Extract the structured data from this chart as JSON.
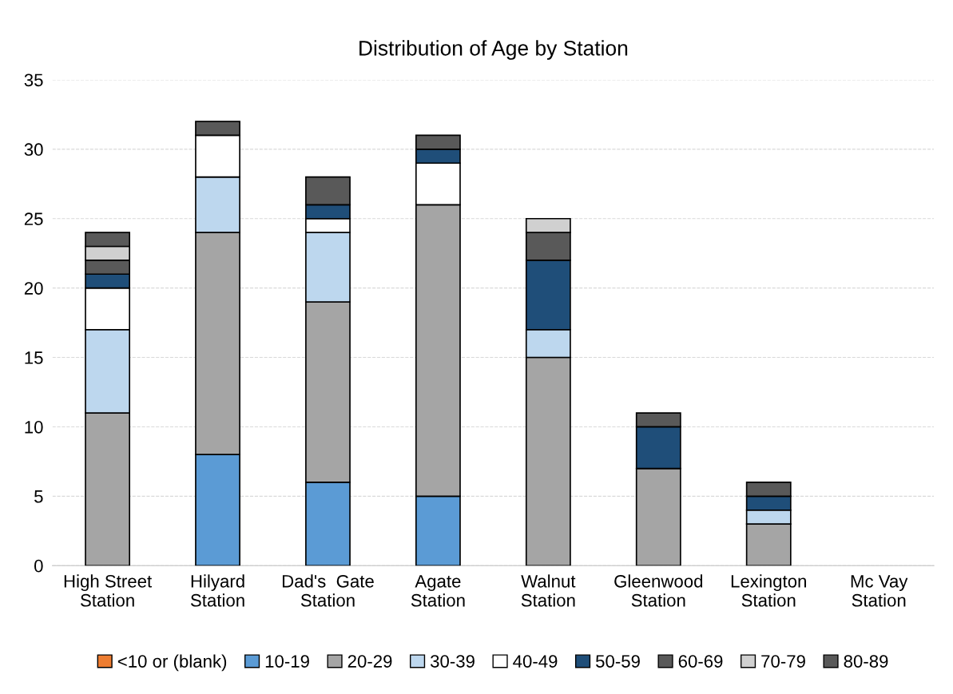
{
  "chart_data": {
    "type": "bar",
    "title": "Distribution of Age by Station",
    "categories": [
      "High Street\nStation",
      "Hilyard\nStation",
      "Dad's  Gate\nStation",
      "Agate\nStation",
      "Walnut\nStation",
      "Gleenwood\nStation",
      "Lexington\nStation",
      "Mc Vay\nStation"
    ],
    "stacked": true,
    "ylim": [
      0,
      35
    ],
    "yticks": [
      0,
      5,
      10,
      15,
      20,
      25,
      30,
      35
    ],
    "grid": "y",
    "legend": "bottom",
    "series": [
      {
        "name": "<10 or (blank)",
        "color": "#ed7d31",
        "values": [
          0,
          0,
          0,
          0,
          0,
          0,
          0,
          0
        ]
      },
      {
        "name": "10-19",
        "color": "#5b9bd5",
        "values": [
          0,
          8,
          6,
          5,
          0,
          0,
          0,
          0
        ]
      },
      {
        "name": "20-29",
        "color": "#a5a5a5",
        "values": [
          11,
          16,
          13,
          21,
          15,
          7,
          3,
          0
        ]
      },
      {
        "name": "30-39",
        "color": "#bdd7ee",
        "values": [
          6,
          4,
          5,
          0,
          2,
          0,
          1,
          0
        ]
      },
      {
        "name": "40-49",
        "color": "#ffffff",
        "values": [
          3,
          3,
          1,
          3,
          0,
          0,
          0,
          0
        ]
      },
      {
        "name": "50-59",
        "color": "#1f4e79",
        "values": [
          1,
          0,
          1,
          1,
          5,
          3,
          1,
          0
        ]
      },
      {
        "name": "60-69",
        "color": "#595959",
        "values": [
          1,
          1,
          2,
          1,
          2,
          1,
          1,
          0
        ]
      },
      {
        "name": "70-79",
        "color": "#d0d0d0",
        "values": [
          1,
          0,
          0,
          0,
          1,
          0,
          0,
          0
        ]
      },
      {
        "name": "80-89",
        "color": "#595959",
        "values": [
          1,
          0,
          0,
          0,
          0,
          0,
          0,
          0
        ]
      }
    ]
  }
}
